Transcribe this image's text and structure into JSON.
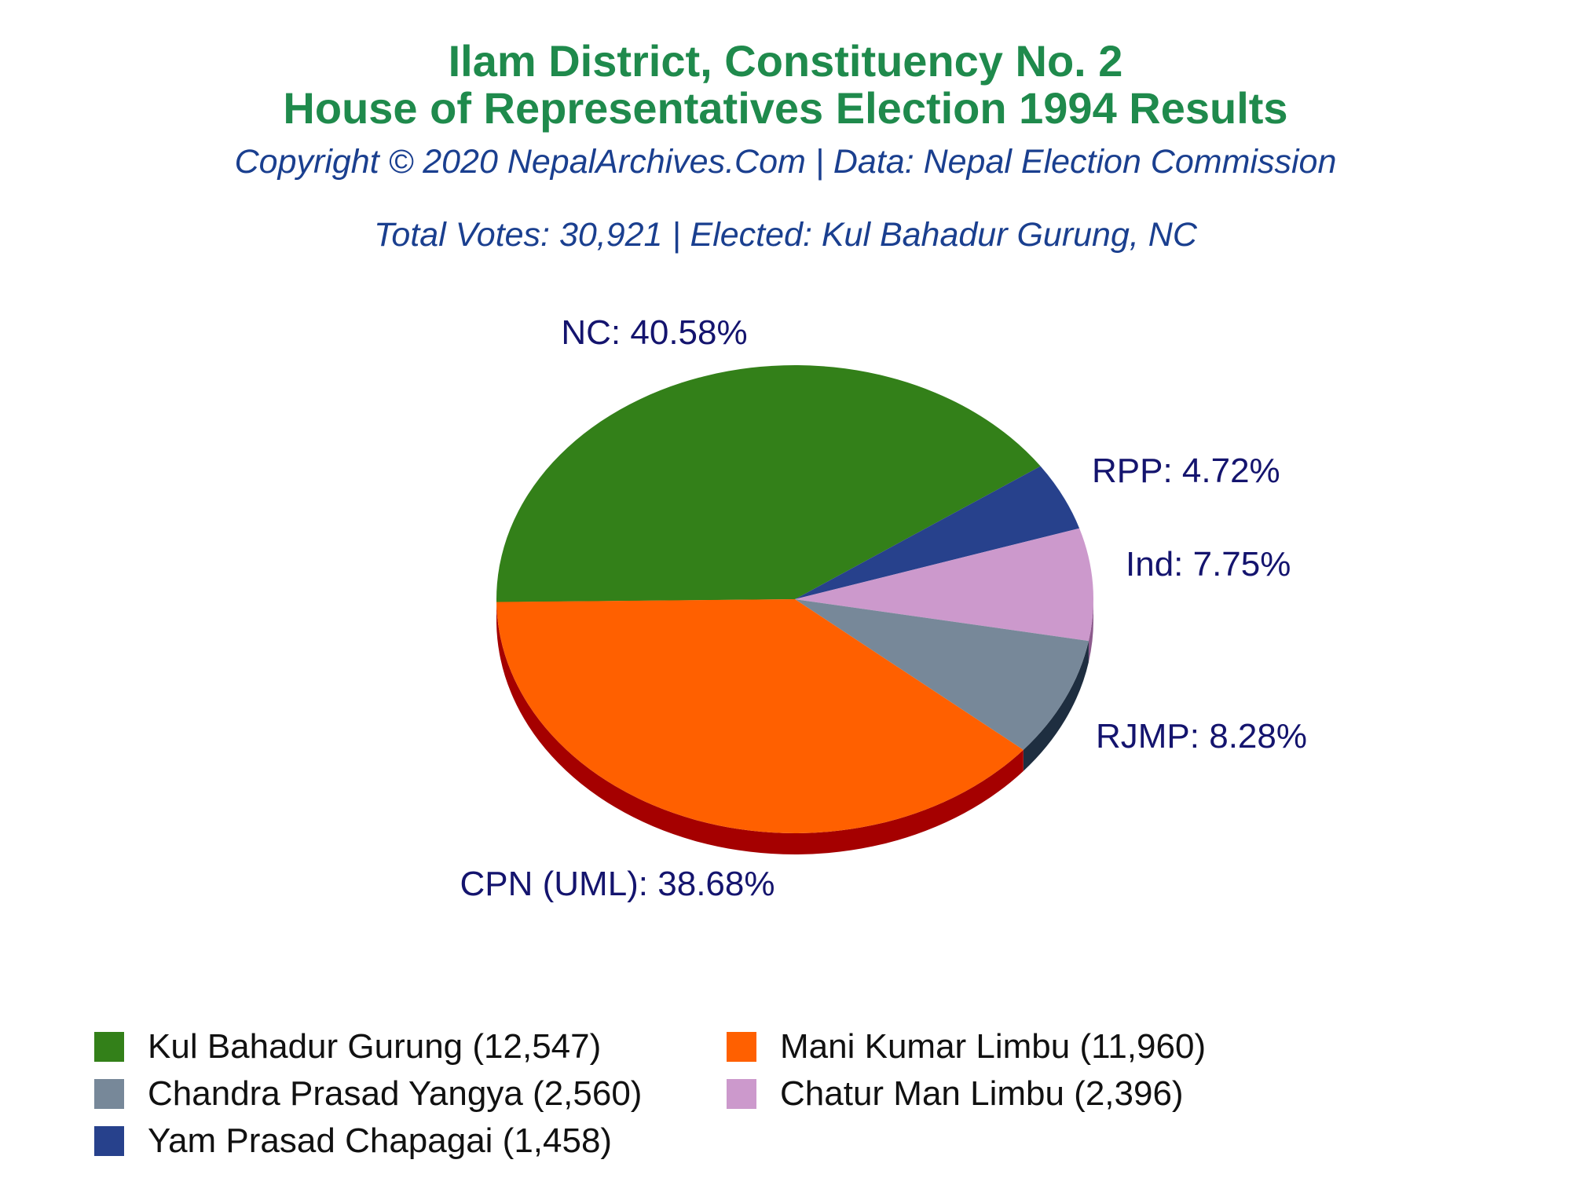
{
  "header": {
    "title_line1": "Ilam District, Constituency No. 2",
    "title_line2": "House of Representatives Election 1994 Results",
    "copyright": "Copyright © 2020 NepalArchives.Com | Data: Nepal Election Commission",
    "summary": "Total Votes: 30,921 | Elected: Kul Bahadur Gurung, NC"
  },
  "chart_data": {
    "type": "pie",
    "title": "Ilam District, Constituency No. 2",
    "subtitle": "House of Representatives Election 1994 Results",
    "slices": [
      {
        "label": "NC",
        "text": "NC: 40.58%",
        "percent": 40.58,
        "color": "#338019",
        "side": "#1f5a0e"
      },
      {
        "label": "RPP",
        "text": "RPP: 4.72%",
        "percent": 4.72,
        "color": "#27418c",
        "side": "#162a5e"
      },
      {
        "label": "Ind",
        "text": "Ind: 7.75%",
        "percent": 7.75,
        "color": "#cc99cc",
        "side": "#8c5a8c"
      },
      {
        "label": "RJMP",
        "text": "RJMP: 8.28%",
        "percent": 8.28,
        "color": "#778899",
        "side": "#1e2e40"
      },
      {
        "label": "CPN (UML)",
        "text": "CPN (UML): 38.68%",
        "percent": 38.68,
        "color": "#ff6000",
        "side": "#a50000"
      }
    ],
    "legend": [
      {
        "text": "Kul Bahadur Gurung (12,547)",
        "color": "#338019"
      },
      {
        "text": "Mani Kumar Limbu (11,960)",
        "color": "#ff6000"
      },
      {
        "text": "Chandra Prasad Yangya (2,560)",
        "color": "#778899"
      },
      {
        "text": "Chatur Man Limbu (2,396)",
        "color": "#cc99cc"
      },
      {
        "text": "Yam Prasad Chapagai (1,458)",
        "color": "#27418c"
      }
    ],
    "legend_placement": "bottom"
  }
}
